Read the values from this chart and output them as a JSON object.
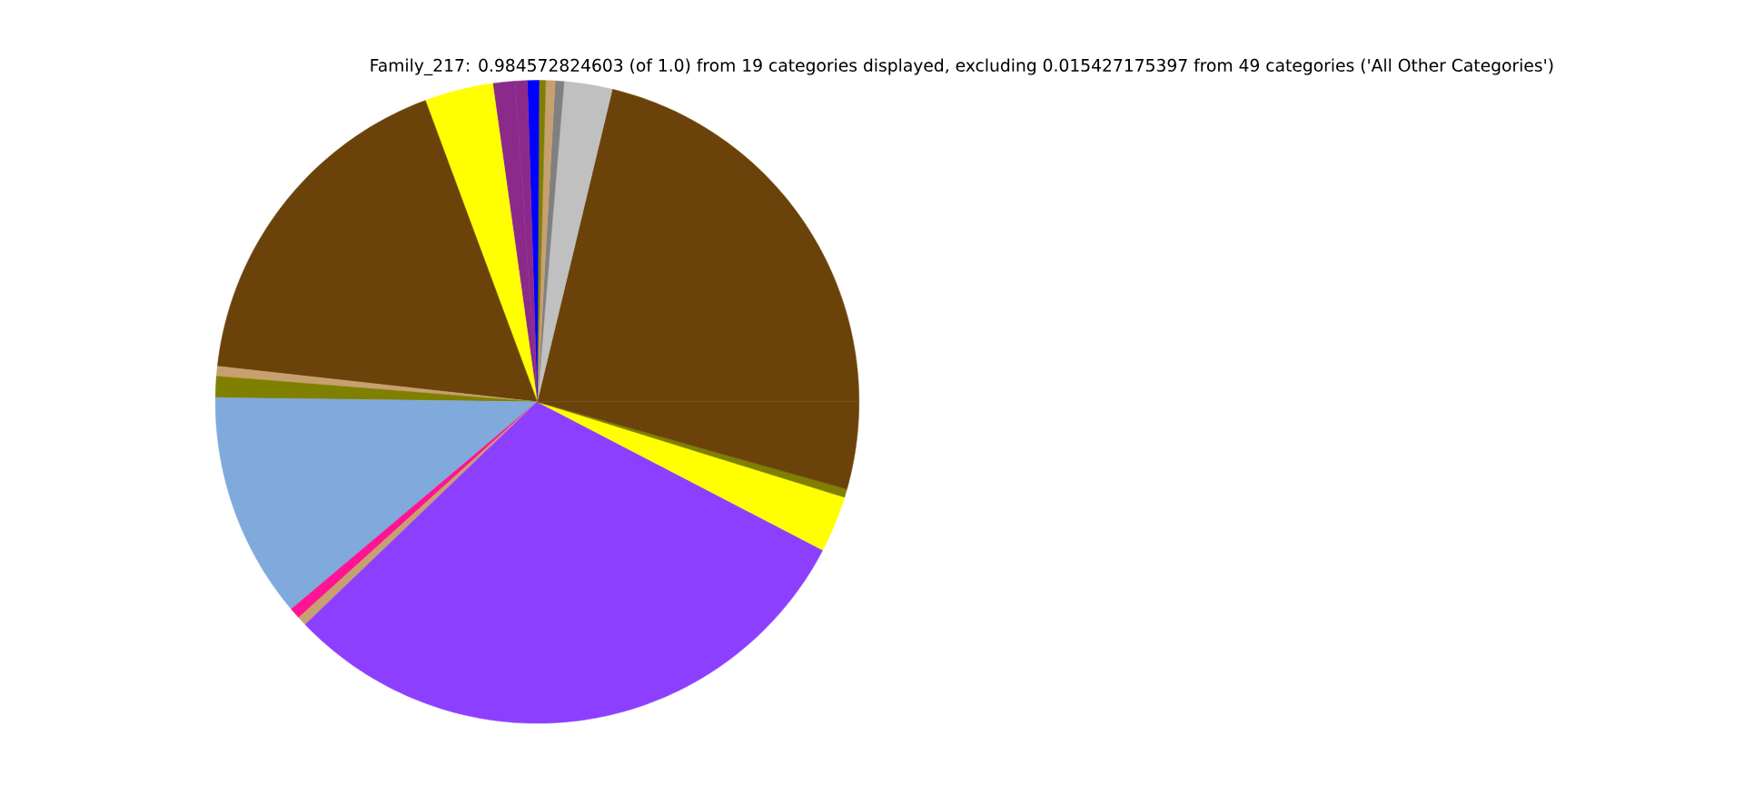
{
  "chart_data": {
    "type": "pie",
    "title": "Family_217: 0.984572824603 (of 1.0) from 19 categories displayed, excluding 0.015427175397 from 49 categories ('All Other Categories')",
    "categories": [
      null,
      null,
      null,
      null,
      null,
      null,
      null,
      null,
      null,
      null,
      null,
      null,
      null,
      null,
      null,
      null,
      null,
      null,
      null
    ],
    "values": [
      21.25,
      2.42,
      0.44,
      0.47,
      0.33,
      0.58,
      0.61,
      1.11,
      3.44,
      17.58,
      0.5,
      1.06,
      11.36,
      0.56,
      0.47,
      30.19,
      2.83,
      0.42,
      4.38
    ],
    "colors": [
      "#6b430a",
      "#c0c0c0",
      "#808080",
      "#c8a070",
      "#808000",
      "#0000ff",
      "#8b2a8b",
      "#8b2a8b",
      "#ffff00",
      "#6b430a",
      "#c8a070",
      "#808000",
      "#7faadb",
      "#ff1493",
      "#c8a070",
      "#8d3fff",
      "#ffff00",
      "#808000",
      "#6b430a"
    ]
  }
}
